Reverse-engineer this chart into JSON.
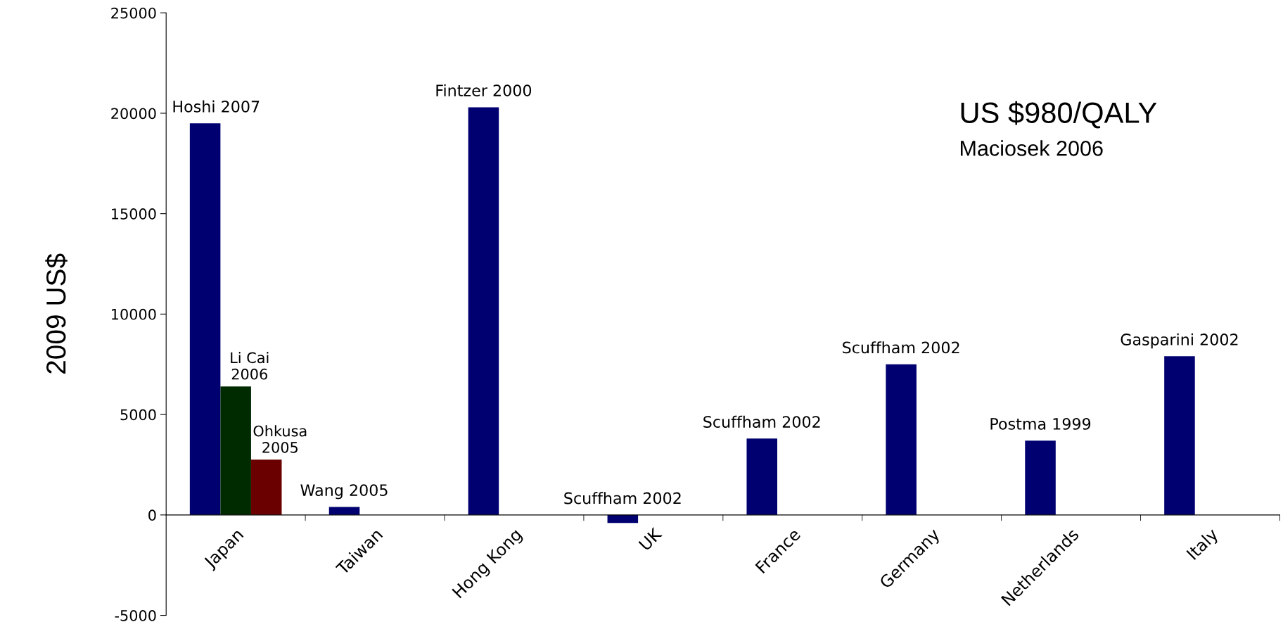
{
  "chart_data": {
    "type": "bar",
    "ylabel": "2009 US$",
    "categories": [
      "Japan",
      "Taiwan",
      "Hong Kong",
      "UK",
      "France",
      "Germany",
      "Netherlands",
      "Italy"
    ],
    "series": [
      {
        "color": "#000070",
        "values": [
          19500,
          400,
          20300,
          -400,
          3800,
          7500,
          3700,
          7900
        ],
        "value_labels": [
          "Hoshi 2007",
          "Wang 2005",
          "Fintzer 2000",
          "Scuffham 2002",
          "Scuffham 2002",
          "Scuffham 2002",
          "Postma 1999",
          "Gasparini 2002"
        ]
      },
      {
        "color": "#002a00",
        "values": [
          6400,
          null,
          null,
          null,
          null,
          null,
          null,
          null
        ],
        "value_labels": [
          "Li Cai 2006",
          null,
          null,
          null,
          null,
          null,
          null,
          null
        ]
      },
      {
        "color": "#6a0000",
        "values": [
          2750,
          null,
          null,
          null,
          null,
          null,
          null,
          null
        ],
        "value_labels": [
          "Ohkusa 2005",
          null,
          null,
          null,
          null,
          null,
          null,
          null
        ]
      }
    ],
    "ylim": [
      -5000,
      25000
    ],
    "yticks": [
      -5000,
      0,
      5000,
      10000,
      15000,
      20000,
      25000
    ],
    "annotations": [
      "US $980/QALY",
      "Maciosek 2006"
    ],
    "grid": false,
    "legend": false
  }
}
